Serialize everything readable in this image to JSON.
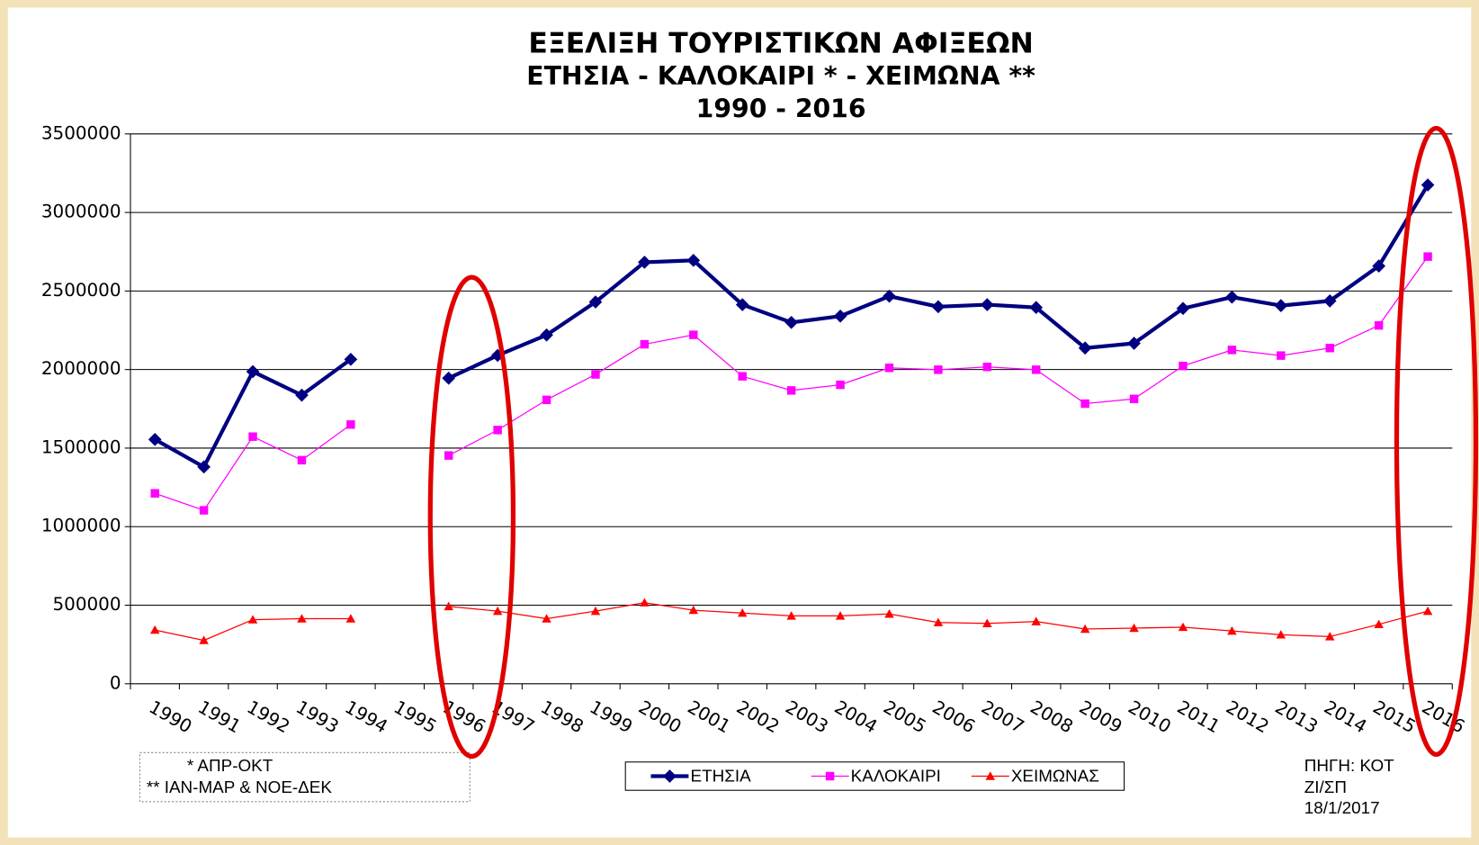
{
  "chart_data": {
    "type": "line",
    "title": "ΕΞΕΛΙΞΗ ΤΟΥΡΙΣΤΙΚΩΝ ΑΦΙΞΕΩΝ",
    "subtitle": "ΕΤΗΣΙΑ - ΚΑΛΟΚΑΙΡΙ * - ΧΕΙΜΩΝΑ **",
    "period": "1990 - 2016",
    "categories": [
      "1990",
      "1991",
      "1992",
      "1993",
      "1994",
      "1995",
      "1996",
      "1997",
      "1998",
      "1999",
      "2000",
      "2001",
      "2002",
      "2003",
      "2004",
      "2005",
      "2006",
      "2007",
      "2008",
      "2009",
      "2010",
      "2011",
      "2012",
      "2013",
      "2014",
      "2015",
      "2016"
    ],
    "series": [
      {
        "name": "ΕΤΗΣΙΑ",
        "color": "#000080",
        "marker": "diamond",
        "values": [
          1555000,
          1380000,
          1987000,
          1837000,
          2065000,
          null,
          1945000,
          2090000,
          2220000,
          2430000,
          2683000,
          2695000,
          2413000,
          2300000,
          2340000,
          2467000,
          2400000,
          2413000,
          2395000,
          2137000,
          2167000,
          2389000,
          2461000,
          2407000,
          2437000,
          2659000,
          3175000
        ]
      },
      {
        "name": "ΚΑΛΟΚΑΙΡΙ",
        "color": "#ff00ff",
        "marker": "square",
        "values": [
          1212000,
          1104000,
          1573000,
          1423000,
          1650000,
          null,
          1453000,
          1615000,
          1807000,
          1969000,
          2161000,
          2221000,
          1957000,
          1867000,
          1903000,
          2011000,
          1999000,
          2017000,
          1999000,
          1783000,
          1813000,
          2023000,
          2125000,
          2089000,
          2137000,
          2281000,
          2719000
        ]
      },
      {
        "name": "ΧΕΙΜΩΝΑΣ",
        "color": "#ff0000",
        "marker": "triangle",
        "values": [
          342000,
          276000,
          408000,
          414000,
          414000,
          null,
          492000,
          462000,
          414000,
          462000,
          516000,
          468000,
          450000,
          432000,
          432000,
          444000,
          390000,
          384000,
          396000,
          348000,
          354000,
          360000,
          336000,
          312000,
          300000,
          378000,
          462000
        ]
      }
    ],
    "ylim": [
      0,
      3500000
    ],
    "yticks": [
      0,
      500000,
      1000000,
      1500000,
      2000000,
      2500000,
      3000000,
      3500000
    ],
    "grid": true,
    "notes": [
      "* ΑΠΡ-ΟΚΤ",
      "** ΙΑΝ-ΜΑΡ & ΝΟΕ-ΔΕΚ"
    ],
    "source": [
      "ΠΗΓΗ: ΚΟΤ",
      "ΖΙ/ΣΠ",
      "18/1/2017"
    ]
  }
}
